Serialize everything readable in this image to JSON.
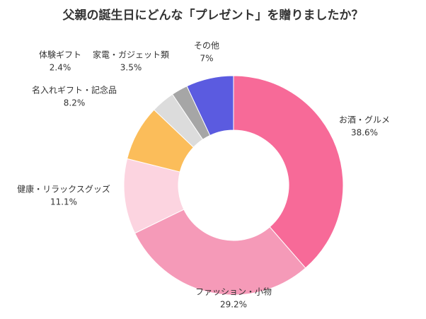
{
  "chart_data": {
    "type": "donut",
    "title": "父親の誕生日にどんな「プレゼント」を贈りましたか？",
    "categories": [
      "お酒・グルメ",
      "ファッション・小物",
      "健康・リラックスグッズ",
      "名入れギフト・記念品",
      "家電・ガジェット類",
      "体験ギフト",
      "その他"
    ],
    "values": [
      38.6,
      29.2,
      11.1,
      8.2,
      3.5,
      2.4,
      7
    ],
    "value_labels": [
      "38.6%",
      "29.2%",
      "11.1%",
      "8.2%",
      "3.5%",
      "2.4%",
      "7%"
    ],
    "colors": [
      "#f76a98",
      "#f59ab8",
      "#fcd4e0",
      "#fbbd5a",
      "#dcdcdc",
      "#a6a6a6",
      "#5b5be0"
    ]
  }
}
